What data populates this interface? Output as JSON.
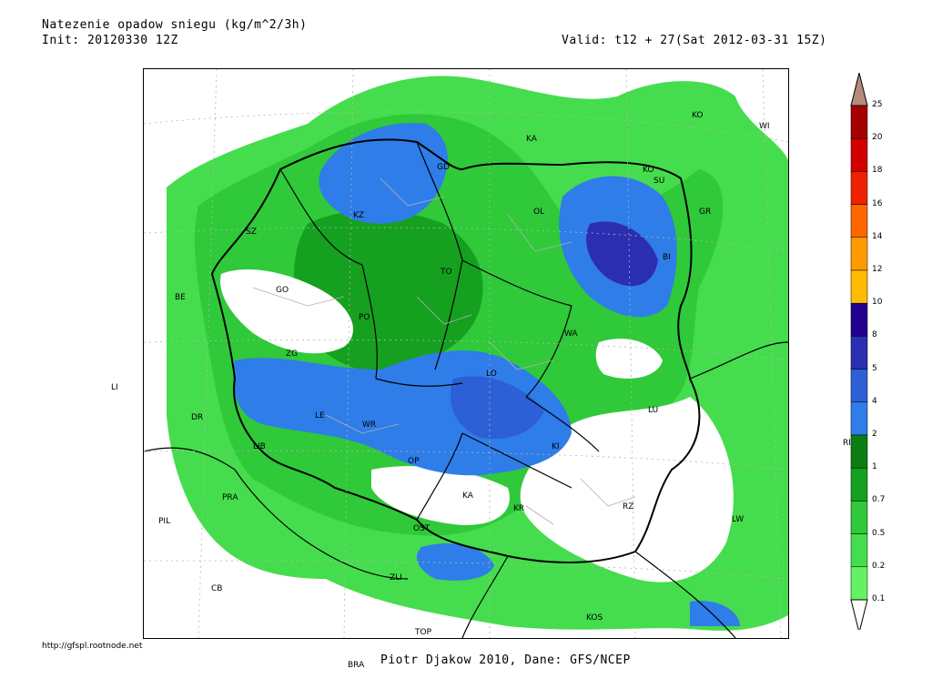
{
  "header": {
    "title": "Natezenie opadow sniegu (kg/m^2/3h)",
    "init": "Init: 20120330 12Z",
    "valid": "Valid: t12 + 27(Sat 2012-03-31 15Z)"
  },
  "footer": {
    "credit": "http://gfspl.rootnode.net",
    "author": "Piotr Djakow 2010, Dane: GFS/NCEP"
  },
  "legend": {
    "ticks": [
      "25",
      "20",
      "18",
      "16",
      "14",
      "12",
      "10",
      "8",
      "5",
      "4",
      "2",
      "1",
      "0.7",
      "0.5",
      "0.2",
      "0.1"
    ],
    "colors": [
      "#b48a7c",
      "#a50000",
      "#d30000",
      "#ee2200",
      "#ff6600",
      "#ff9a00",
      "#ffbb00",
      "#23008f",
      "#2b2eb0",
      "#2d5fd6",
      "#2f7de9",
      "#0b7d12",
      "#16a020",
      "#2fc93a",
      "#45dd4d",
      "#63f261"
    ]
  },
  "cities_in_map": [
    {
      "id": "KA",
      "label": "KA"
    },
    {
      "id": "KO",
      "label": "KO"
    },
    {
      "id": "WI",
      "label": "WI"
    },
    {
      "id": "KO2",
      "label": "KO"
    },
    {
      "id": "SU",
      "label": "SU"
    },
    {
      "id": "GR",
      "label": "GR"
    },
    {
      "id": "GD",
      "label": "GD"
    },
    {
      "id": "OL",
      "label": "OL"
    },
    {
      "id": "SZ",
      "label": "SZ"
    },
    {
      "id": "KZ",
      "label": "KZ"
    },
    {
      "id": "BI",
      "label": "BI"
    },
    {
      "id": "TO",
      "label": "TO"
    },
    {
      "id": "GO",
      "label": "GO"
    },
    {
      "id": "BE",
      "label": "BE"
    },
    {
      "id": "PO",
      "label": "PO"
    },
    {
      "id": "WA",
      "label": "WA"
    },
    {
      "id": "ZG",
      "label": "ZG"
    },
    {
      "id": "LO",
      "label": "LO"
    },
    {
      "id": "LE",
      "label": "LE"
    },
    {
      "id": "WR",
      "label": "WR"
    },
    {
      "id": "LU",
      "label": "LU"
    },
    {
      "id": "DR",
      "label": "DR"
    },
    {
      "id": "KI",
      "label": "KI"
    },
    {
      "id": "LIB",
      "label": "LIB"
    },
    {
      "id": "OP",
      "label": "OP"
    },
    {
      "id": "KA2",
      "label": "KA"
    },
    {
      "id": "PRA",
      "label": "PRA"
    },
    {
      "id": "KR",
      "label": "KR"
    },
    {
      "id": "RZ",
      "label": "RZ"
    },
    {
      "id": "PIL",
      "label": "PIL"
    },
    {
      "id": "OST",
      "label": "OST"
    },
    {
      "id": "LW",
      "label": "LW"
    },
    {
      "id": "CB",
      "label": "CB"
    },
    {
      "id": "ZLI",
      "label": "ZLI"
    },
    {
      "id": "KOS",
      "label": "KOS"
    },
    {
      "id": "TOP",
      "label": "TOP"
    }
  ],
  "cities_outside": [
    {
      "id": "LI",
      "label": "LI"
    },
    {
      "id": "RI",
      "label": "RI"
    },
    {
      "id": "BRA",
      "label": "BRA"
    }
  ]
}
